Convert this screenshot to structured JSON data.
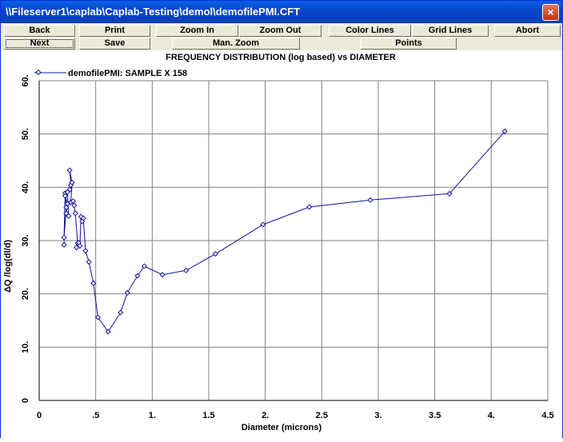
{
  "window": {
    "title": "\\\\Fileserver1\\caplab\\Caplab-Testing\\demol\\demofilePMI.CFT",
    "close_glyph": "×"
  },
  "toolbar": {
    "back": "Back",
    "next": "Next",
    "print": "Print",
    "save": "Save",
    "zoom_in": "Zoom In",
    "zoom_out": "Zoom Out",
    "man_zoom": "Man. Zoom",
    "color_lines": "Color Lines",
    "grid_lines": "Grid Lines",
    "points": "Points",
    "abort": "Abort"
  },
  "chart_data": {
    "type": "line",
    "title": "FREQUENCY DISTRIBUTION (log based) vs DIAMETER",
    "xlabel": "Diameter (microns)",
    "ylabel": "ΔQ /log(dl/d)",
    "xlim": [
      0,
      4.5
    ],
    "ylim": [
      0,
      60
    ],
    "xticks": [
      {
        "v": 0,
        "label": "0"
      },
      {
        "v": 0.5,
        "label": ".5"
      },
      {
        "v": 1,
        "label": "1."
      },
      {
        "v": 1.5,
        "label": "1.5"
      },
      {
        "v": 2,
        "label": "2."
      },
      {
        "v": 2.5,
        "label": "2.5"
      },
      {
        "v": 3,
        "label": "3."
      },
      {
        "v": 3.5,
        "label": "3.5"
      },
      {
        "v": 4,
        "label": "4."
      },
      {
        "v": 4.5,
        "label": "4.5"
      }
    ],
    "yticks": [
      {
        "v": 0,
        "label": "0"
      },
      {
        "v": 10,
        "label": "10."
      },
      {
        "v": 20,
        "label": "20."
      },
      {
        "v": 30,
        "label": "30."
      },
      {
        "v": 40,
        "label": "40."
      },
      {
        "v": 50,
        "label": "50."
      },
      {
        "v": 60,
        "label": "60."
      }
    ],
    "grid": true,
    "legend_position": "top-left",
    "series": [
      {
        "name": "demofilePMI: SAMPLE X 158",
        "color": "#1010A0",
        "x": [
          0.22,
          0.23,
          0.22,
          0.24,
          0.23,
          0.25,
          0.24,
          0.26,
          0.25,
          0.27,
          0.28,
          0.27,
          0.29,
          0.28,
          0.3,
          0.31,
          0.32,
          0.34,
          0.33,
          0.35,
          0.36,
          0.37,
          0.38,
          0.39,
          0.41,
          0.44,
          0.48,
          0.52,
          0.61,
          0.72,
          0.78,
          0.87,
          0.93,
          1.09,
          1.3,
          1.56,
          1.98,
          2.39,
          2.93,
          3.63,
          4.12
        ],
        "y": [
          29.2,
          38.9,
          30.6,
          36.2,
          38.4,
          36.9,
          35.1,
          34.6,
          39.1,
          39.6,
          40.4,
          43.2,
          40.9,
          37.2,
          37.4,
          36.6,
          35.1,
          29.5,
          28.7,
          29.6,
          29.0,
          34.5,
          33.6,
          34.2,
          28.1,
          26.0,
          22.0,
          15.6,
          12.9,
          16.5,
          20.2,
          23.4,
          25.2,
          23.6,
          24.4,
          27.5,
          33.0,
          36.3,
          37.6,
          38.8,
          50.5
        ]
      }
    ]
  }
}
